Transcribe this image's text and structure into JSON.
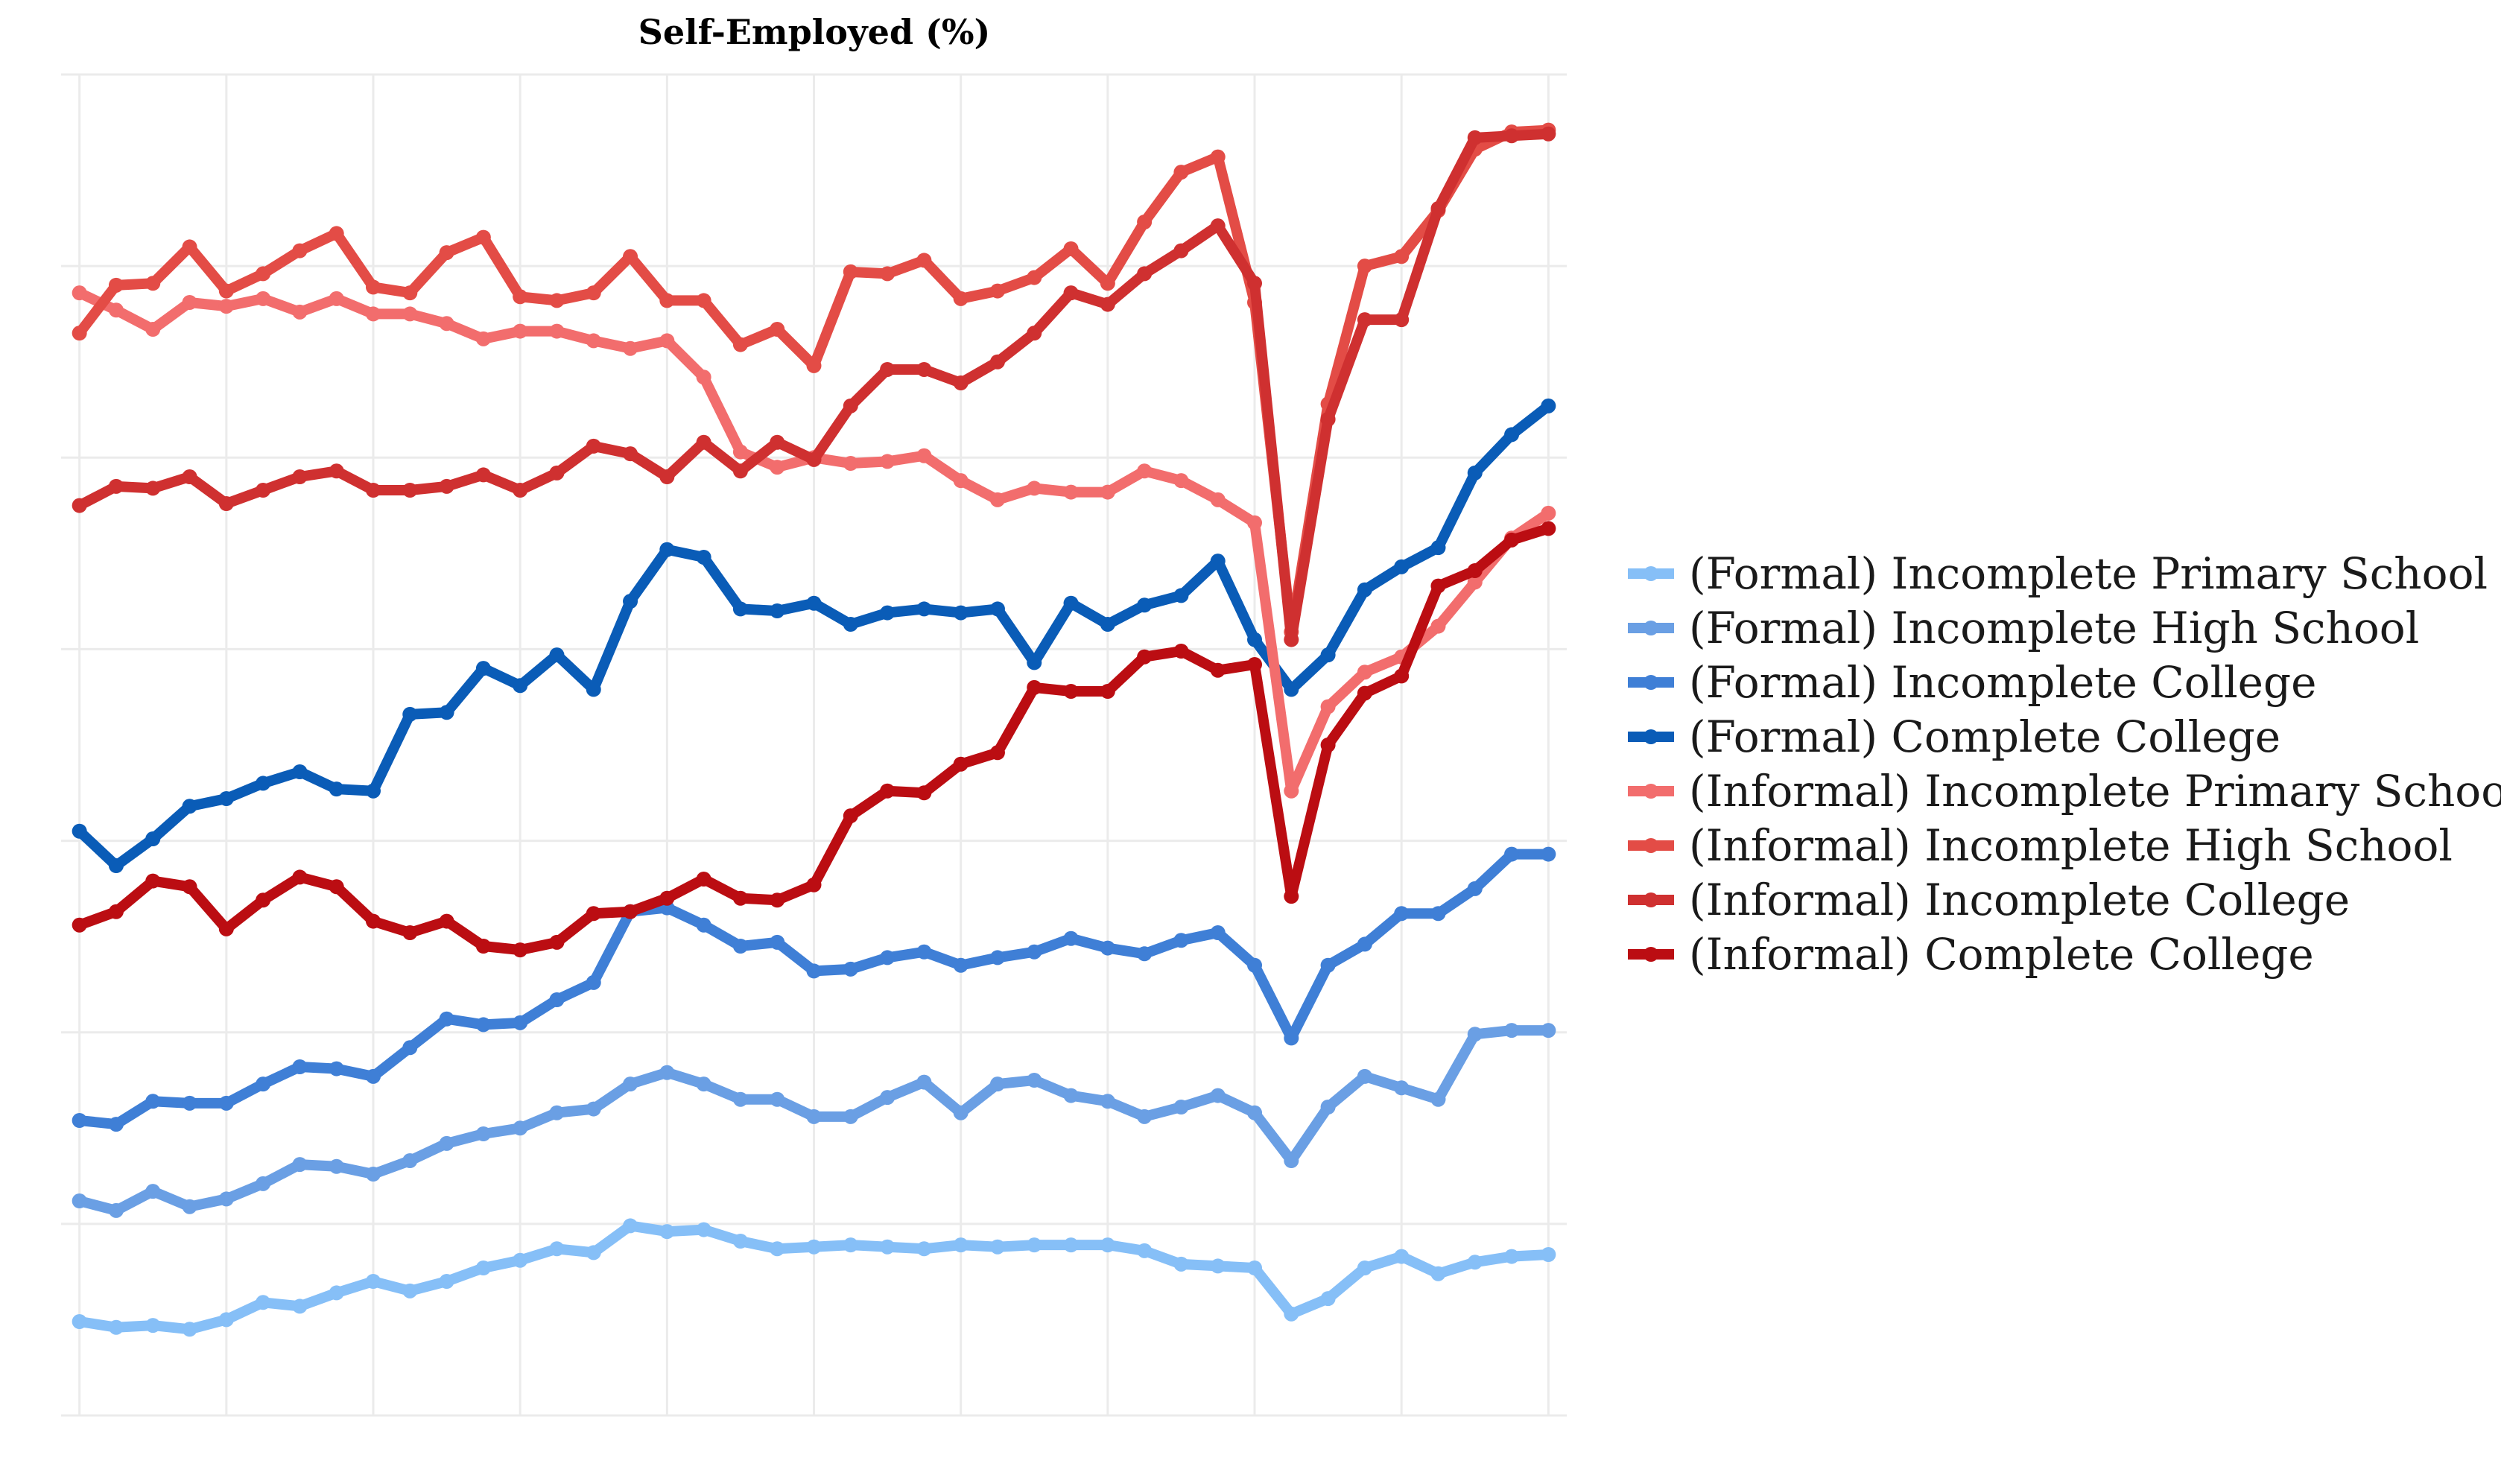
{
  "chart_data": {
    "type": "line",
    "title": "Self-Employed (%)",
    "subtitle": "",
    "xlabel": "",
    "ylabel": "",
    "x": [
      1,
      2,
      3,
      4,
      5,
      6,
      7,
      8,
      9,
      10,
      11,
      12,
      13,
      14,
      15,
      16,
      17,
      18,
      19,
      20,
      21,
      22,
      23,
      24,
      25,
      26,
      27,
      28,
      29,
      30,
      31,
      32,
      33,
      34,
      35,
      36,
      37,
      38,
      39,
      40,
      41
    ],
    "xlim": [
      0.5,
      41.5
    ],
    "ylim": [
      -0.2,
      6.8
    ],
    "grid": true,
    "x_ticks_labeled": false,
    "y_ticks_labeled": false,
    "legend_position": "right",
    "series": [
      {
        "name": "(Formal) Incomplete Primary School",
        "color": "#86bff7",
        "values": [
          0.29,
          0.26,
          0.27,
          0.25,
          0.3,
          0.39,
          0.37,
          0.44,
          0.5,
          0.45,
          0.5,
          0.57,
          0.61,
          0.67,
          0.65,
          0.79,
          0.76,
          0.77,
          0.71,
          0.67,
          0.68,
          0.69,
          0.68,
          0.67,
          0.69,
          0.68,
          0.69,
          0.69,
          0.69,
          0.66,
          0.59,
          0.58,
          0.57,
          0.33,
          0.41,
          0.57,
          0.63,
          0.54,
          0.6,
          0.63,
          0.64
        ]
      },
      {
        "name": "(Formal) Incomplete High School",
        "color": "#6a9fe4",
        "values": [
          0.92,
          0.87,
          0.97,
          0.89,
          0.93,
          1.01,
          1.11,
          1.1,
          1.06,
          1.13,
          1.22,
          1.27,
          1.3,
          1.38,
          1.4,
          1.53,
          1.59,
          1.53,
          1.45,
          1.45,
          1.36,
          1.36,
          1.46,
          1.54,
          1.38,
          1.53,
          1.55,
          1.47,
          1.44,
          1.36,
          1.41,
          1.47,
          1.38,
          1.13,
          1.41,
          1.57,
          1.51,
          1.45,
          1.79,
          1.81,
          1.81
        ]
      },
      {
        "name": "(Formal) Incomplete College",
        "color": "#3f7fd6",
        "values": [
          1.34,
          1.32,
          1.44,
          1.43,
          1.43,
          1.53,
          1.62,
          1.61,
          1.57,
          1.72,
          1.87,
          1.84,
          1.85,
          1.97,
          2.06,
          2.43,
          2.45,
          2.36,
          2.25,
          2.27,
          2.12,
          2.13,
          2.19,
          2.22,
          2.15,
          2.19,
          2.22,
          2.29,
          2.24,
          2.21,
          2.28,
          2.32,
          2.15,
          1.77,
          2.15,
          2.26,
          2.42,
          2.42,
          2.55,
          2.73,
          2.73
        ]
      },
      {
        "name": "(Formal) Complete College",
        "color": "#0a5cb7",
        "values": [
          2.85,
          2.67,
          2.81,
          2.98,
          3.02,
          3.1,
          3.16,
          3.07,
          3.06,
          3.46,
          3.47,
          3.7,
          3.61,
          3.77,
          3.59,
          4.05,
          4.32,
          4.28,
          4.01,
          4.0,
          4.04,
          3.93,
          3.99,
          4.01,
          3.99,
          4.01,
          3.73,
          4.04,
          3.93,
          4.03,
          4.08,
          4.26,
          3.85,
          3.59,
          3.77,
          4.11,
          4.23,
          4.33,
          4.72,
          4.92,
          5.07
        ]
      },
      {
        "name": "(Informal) Incomplete Primary School",
        "color": "#f26d6d",
        "values": [
          5.66,
          5.57,
          5.47,
          5.61,
          5.59,
          5.63,
          5.56,
          5.63,
          5.55,
          5.55,
          5.5,
          5.42,
          5.46,
          5.46,
          5.41,
          5.37,
          5.41,
          5.22,
          4.83,
          4.75,
          4.8,
          4.77,
          4.78,
          4.81,
          4.68,
          4.58,
          4.64,
          4.62,
          4.62,
          4.73,
          4.68,
          4.58,
          4.46,
          3.06,
          3.5,
          3.68,
          3.76,
          3.92,
          4.15,
          4.38,
          4.51
        ]
      },
      {
        "name": "(Informal) Incomplete High School",
        "color": "#e34c46",
        "values": [
          5.45,
          5.7,
          5.71,
          5.9,
          5.67,
          5.76,
          5.88,
          5.97,
          5.69,
          5.66,
          5.87,
          5.95,
          5.64,
          5.62,
          5.66,
          5.85,
          5.62,
          5.62,
          5.39,
          5.47,
          5.28,
          5.77,
          5.76,
          5.83,
          5.63,
          5.67,
          5.74,
          5.89,
          5.71,
          6.03,
          6.29,
          6.37,
          5.61,
          3.89,
          5.08,
          5.8,
          5.85,
          6.09,
          6.41,
          6.5,
          6.51
        ]
      },
      {
        "name": "(Informal) Incomplete College",
        "color": "#cf3030",
        "values": [
          4.55,
          4.65,
          4.64,
          4.7,
          4.56,
          4.63,
          4.7,
          4.73,
          4.63,
          4.63,
          4.65,
          4.71,
          4.63,
          4.72,
          4.86,
          4.82,
          4.7,
          4.88,
          4.73,
          4.88,
          4.79,
          5.07,
          5.26,
          5.26,
          5.19,
          5.3,
          5.45,
          5.66,
          5.6,
          5.76,
          5.88,
          6.01,
          5.71,
          3.85,
          5.0,
          5.52,
          5.52,
          6.1,
          6.47,
          6.48,
          6.49
        ]
      },
      {
        "name": "(Informal) Complete College",
        "color": "#bb0d12",
        "values": [
          2.36,
          2.43,
          2.59,
          2.56,
          2.34,
          2.49,
          2.61,
          2.56,
          2.38,
          2.32,
          2.38,
          2.25,
          2.23,
          2.27,
          2.42,
          2.43,
          2.5,
          2.6,
          2.5,
          2.49,
          2.57,
          2.93,
          3.06,
          3.05,
          3.2,
          3.26,
          3.6,
          3.58,
          3.58,
          3.76,
          3.79,
          3.69,
          3.72,
          2.51,
          3.3,
          3.57,
          3.66,
          4.13,
          4.21,
          4.37,
          4.43
        ]
      }
    ]
  }
}
